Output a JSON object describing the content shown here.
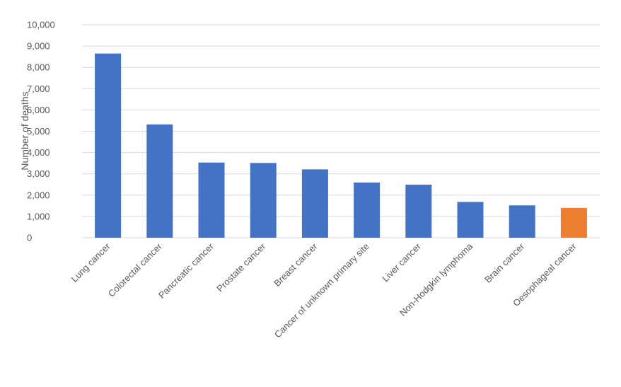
{
  "chart_data": {
    "type": "bar",
    "title": "",
    "xlabel": "",
    "ylabel": "Number of deaths",
    "ylim": [
      0,
      10000
    ],
    "y_ticks": [
      "0",
      "1,000",
      "2,000",
      "3,000",
      "4,000",
      "5,000",
      "6,000",
      "7,000",
      "8,000",
      "9,000",
      "10,000"
    ],
    "grid": true,
    "categories": [
      "Lung cancer",
      "Colorectal cancer",
      "Pancreatic cancer",
      "Prostate cancer",
      "Breast cancer",
      "Cancer of unknown primary site",
      "Liver cancer",
      "Non-Hodgkin lymphoma",
      "Brain cancer",
      "Oesophageal cancer"
    ],
    "values": [
      8650,
      5320,
      3530,
      3510,
      3210,
      2590,
      2490,
      1680,
      1520,
      1400
    ],
    "colors": {
      "default": "#4472c4",
      "highlight": "#ed7d31"
    },
    "highlight_index": 9
  }
}
